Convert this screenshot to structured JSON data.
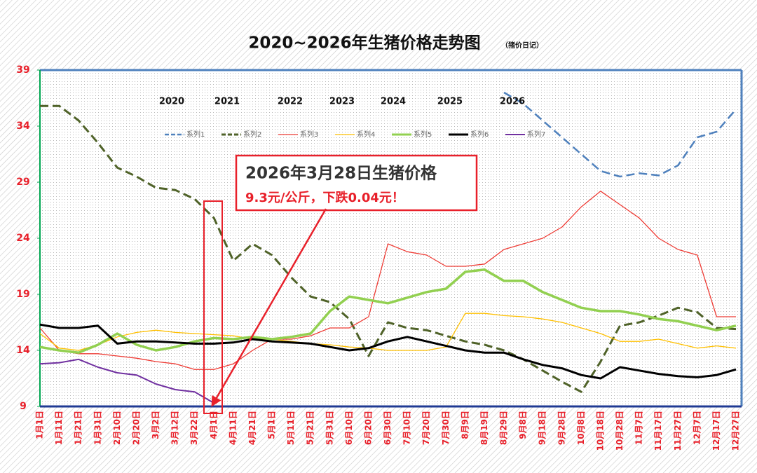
{
  "chart_data": {
    "type": "line",
    "title": "2020~2026年生猪价格走势图",
    "subtitle": "（猪价日记）",
    "annotation": {
      "line1": "2026年3月28日生猪价格",
      "line2": "9.3元/公斤，下跌0.04元！"
    },
    "year_labels": [
      "2020",
      "2021",
      "2022",
      "2023",
      "2024",
      "2025",
      "2026"
    ],
    "legend": "top",
    "ylim": [
      9,
      39
    ],
    "yticks": [
      9,
      14,
      19,
      24,
      29,
      34,
      39
    ],
    "categories": [
      "1月1日",
      "1月11日",
      "1月21日",
      "1月31日",
      "2月10日",
      "2月20日",
      "3月2日",
      "3月12日",
      "3月22日",
      "4月1日",
      "4月11日",
      "4月21日",
      "5月1日",
      "5月11日",
      "5月21日",
      "5月31日",
      "6月10日",
      "6月20日",
      "6月30日",
      "7月10日",
      "7月20日",
      "7月30日",
      "8月9日",
      "8月19日",
      "8月29日",
      "9月8日",
      "9月18日",
      "9月28日",
      "10月8日",
      "10月18日",
      "10月28日",
      "11月7日",
      "11月17日",
      "11月27日",
      "12月7日",
      "12月17日",
      "12月27日"
    ],
    "series": [
      {
        "name": "系列1",
        "color": "#4f81bd",
        "style": "dashed",
        "width": 2.5,
        "values": [
          null,
          null,
          null,
          null,
          null,
          null,
          null,
          null,
          null,
          null,
          null,
          null,
          null,
          null,
          null,
          null,
          null,
          null,
          null,
          null,
          null,
          null,
          null,
          null,
          37,
          36,
          34.5,
          33,
          31.5,
          30,
          29.5,
          29.8,
          29.6,
          30.5,
          33,
          33.5,
          35.5
        ]
      },
      {
        "name": "系列2",
        "color": "#4f6228",
        "style": "dashed",
        "width": 3,
        "values": [
          35.8,
          35.8,
          34.5,
          32.5,
          30.3,
          29.5,
          28.5,
          28.3,
          27.5,
          25.8,
          22,
          23.5,
          22.5,
          20.5,
          18.8,
          18.3,
          16.8,
          13.5,
          16.5,
          16,
          15.8,
          15.3,
          14.8,
          14.5,
          14,
          13.2,
          12.2,
          11.2,
          10.3,
          13,
          16.2,
          16.5,
          17.1,
          17.8,
          17.4,
          16,
          15.9
        ]
      },
      {
        "name": "系列3",
        "color": "#ee3b34",
        "style": "solid",
        "width": 1.3,
        "values": [
          16,
          14,
          13.7,
          13.7,
          13.5,
          13.3,
          13,
          12.8,
          12.3,
          12.3,
          12.8,
          14,
          15,
          15,
          15.3,
          16,
          16,
          17,
          23.5,
          22.8,
          22.5,
          21.5,
          21.5,
          21.7,
          23,
          23.5,
          24,
          25,
          26.8,
          28.2,
          27,
          25.8,
          24,
          23,
          22.5,
          17,
          17
        ]
      },
      {
        "name": "系列4",
        "color": "#ffc000",
        "style": "solid",
        "width": 1.3,
        "values": [
          15.5,
          14.2,
          14,
          14.5,
          15.2,
          15.6,
          15.8,
          15.6,
          15.5,
          15.4,
          15.3,
          15,
          15,
          14.8,
          14.6,
          14.5,
          14.3,
          14.2,
          14,
          14,
          14,
          14.3,
          17.3,
          17.3,
          17.1,
          17,
          16.8,
          16.5,
          16,
          15.5,
          14.8,
          14.8,
          15,
          14.6,
          14.2,
          14.4,
          14.2
        ]
      },
      {
        "name": "系列5",
        "color": "#92d050",
        "style": "solid",
        "width": 3.5,
        "values": [
          14.3,
          14,
          13.8,
          14.5,
          15.5,
          14.5,
          14,
          14.3,
          14.8,
          15.1,
          15,
          15.2,
          15,
          15.2,
          15.5,
          17.5,
          18.8,
          18.5,
          18.2,
          18.7,
          19.2,
          19.5,
          21,
          21.2,
          20.2,
          20.2,
          19.2,
          18.5,
          17.8,
          17.5,
          17.5,
          17.2,
          16.8,
          16.6,
          16.2,
          15.8,
          16.2
        ]
      },
      {
        "name": "系列6",
        "color": "#000000",
        "style": "solid",
        "width": 3,
        "values": [
          16.3,
          16,
          16,
          16.2,
          14.6,
          14.8,
          14.8,
          14.7,
          14.6,
          14.6,
          14.7,
          15,
          14.8,
          14.7,
          14.6,
          14.3,
          14,
          14.2,
          14.8,
          15.2,
          14.8,
          14.4,
          14,
          13.8,
          13.8,
          13.2,
          12.7,
          12.4,
          11.8,
          11.5,
          12.5,
          12.2,
          11.9,
          11.7,
          11.6,
          11.8,
          12.3
        ]
      },
      {
        "name": "系列7",
        "color": "#7030a0",
        "style": "solid",
        "width": 2,
        "values": [
          12.8,
          12.9,
          13.2,
          12.5,
          12,
          11.8,
          11,
          10.5,
          10.3,
          9.3,
          null,
          null,
          null,
          null,
          null,
          null,
          null,
          null,
          null,
          null,
          null,
          null,
          null,
          null,
          null,
          null,
          null,
          null,
          null,
          null,
          null,
          null,
          null,
          null,
          null,
          null,
          null
        ]
      }
    ]
  }
}
